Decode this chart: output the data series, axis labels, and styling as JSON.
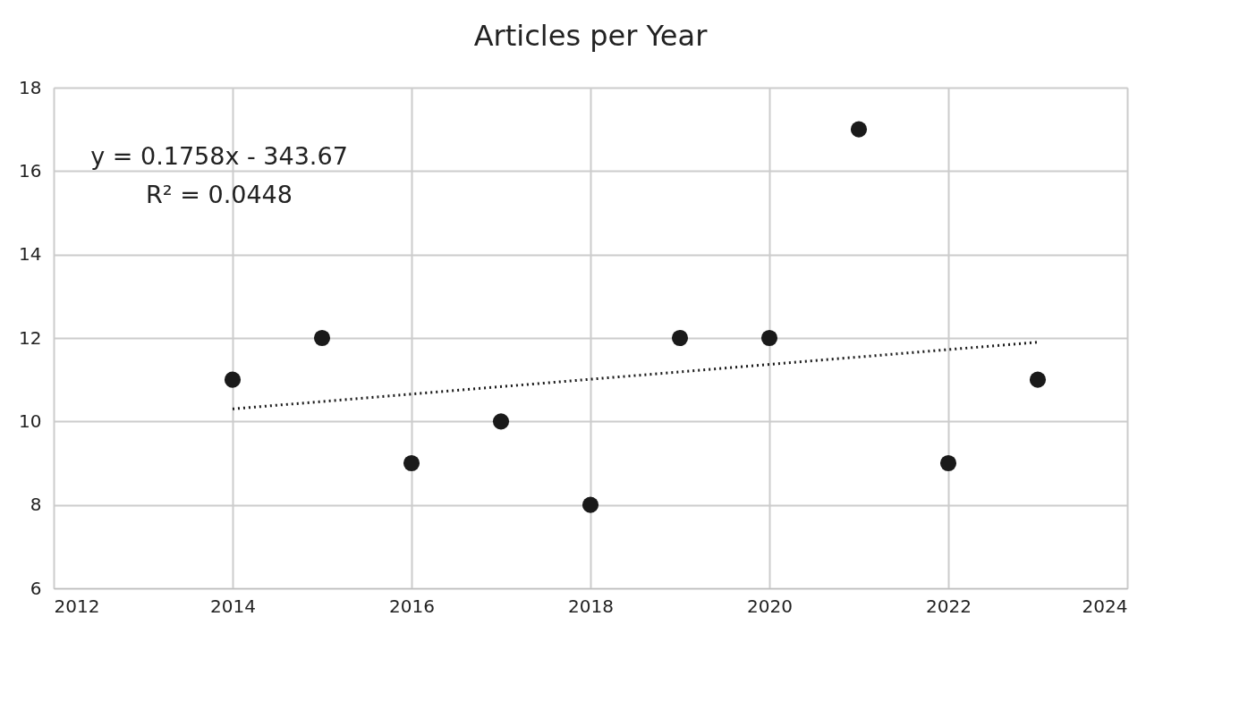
{
  "chart_data": {
    "type": "scatter",
    "title": "Articles per Year",
    "x": [
      2014,
      2015,
      2016,
      2017,
      2018,
      2019,
      2020,
      2021,
      2022,
      2023
    ],
    "series": [
      {
        "color": "#1a1a1a",
        "marker": "circle",
        "values": [
          11,
          12,
          9,
          10,
          8,
          12,
          12,
          17,
          9,
          11
        ]
      },
      {
        "type": "line",
        "color": "#1a1a1a",
        "line_style": "dotted",
        "x": [
          2014,
          2023
        ],
        "values": [
          10.3,
          11.9
        ]
      }
    ],
    "xlim": [
      2012,
      2024
    ],
    "xticks": [
      2012,
      2014,
      2016,
      2018,
      2020,
      2022,
      2024
    ],
    "ylim": [
      6,
      18
    ],
    "yticks": [
      6,
      8,
      10,
      12,
      14,
      16,
      18
    ],
    "grid": true,
    "annotations": [
      "y = 0.1758x - 343.67",
      "R² = 0.0448"
    ]
  }
}
